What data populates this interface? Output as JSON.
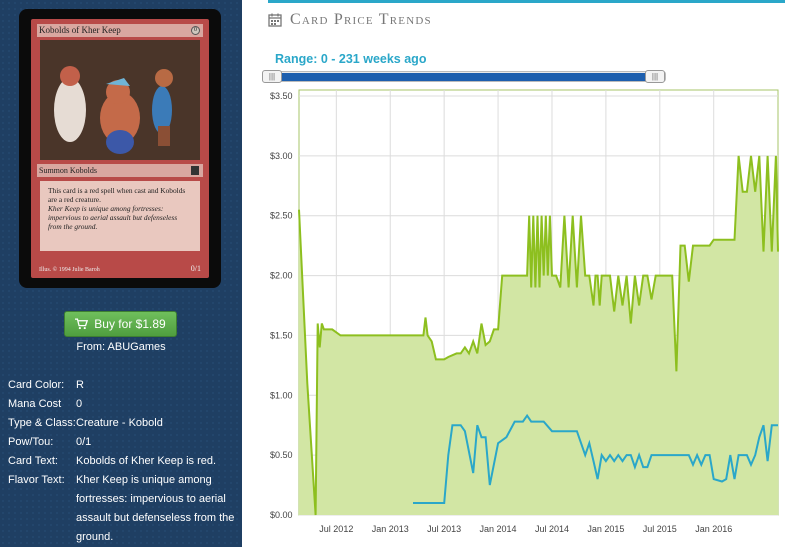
{
  "card": {
    "name": "Kobolds of Kher Keep",
    "mana_symbol": "0",
    "type_line": "Summon Kobolds",
    "rules_text": "This card is a red spell when cast and Kobolds are a red creature.",
    "flavor_text": "Kher Keep is unique among fortresses: impervious to aerial assault but defenseless from the ground.",
    "artist_line": "Illus. © 1994 Julie Baroh",
    "pt": "0/1"
  },
  "buy_button": {
    "label": "Buy for $1.89",
    "icon": "shopping-cart-icon"
  },
  "from_text": "From: ABUGames",
  "info": [
    {
      "label": "Card Color:",
      "value": "R"
    },
    {
      "label": "Mana Cost",
      "value": "0"
    },
    {
      "label": "Type & Class:",
      "value": "Creature - Kobold"
    },
    {
      "label": "Pow/Tou:",
      "value": "0/1"
    },
    {
      "label": "Card Text:",
      "value": "Kobolds of Kher Keep is red."
    },
    {
      "label": "Flavor Text:",
      "value": "Kher Keep is unique among fortresses: impervious to aerial assault but defenseless from the ground."
    }
  ],
  "section_title": "Card Price Trends",
  "section_icon": "calendar-icon",
  "range_text": "Range: 0 - 231 weeks ago",
  "colors": {
    "accent": "#2aa7c9",
    "series_green": "#8dbf1f",
    "area_green": "#d2e6a4",
    "series_blue": "#2aa7c9",
    "button_green": "#5cae4a"
  },
  "chart_data": {
    "type": "line",
    "ylim": [
      0,
      3.5
    ],
    "yticks": [
      "$3.50",
      "$3.00",
      "$2.50",
      "$2.00",
      "$1.50",
      "$1.00",
      "$0.50",
      "$0.00"
    ],
    "ytick_values": [
      3.5,
      3.0,
      2.5,
      2.0,
      1.5,
      1.0,
      0.5,
      0.0
    ],
    "xlim": [
      0,
      231
    ],
    "xticks": [
      "Jul 2012",
      "Jan 2013",
      "Jul 2013",
      "Jan 2014",
      "Jul 2014",
      "Jan 2015",
      "Jul 2015",
      "Jan 2016"
    ],
    "xtick_weeks": [
      18,
      44,
      70,
      96,
      122,
      148,
      174,
      200
    ],
    "grid": true,
    "series": [
      {
        "x": [
          0,
          4,
          8,
          9,
          10,
          11,
          12,
          14,
          16,
          20,
          30,
          40,
          55,
          60,
          61,
          62,
          64,
          66,
          70,
          72,
          76,
          78,
          80,
          82,
          84,
          86,
          88,
          90,
          92,
          94,
          96,
          98,
          100,
          104,
          108,
          110,
          111,
          112,
          113,
          114,
          115,
          116,
          117,
          118,
          119,
          120,
          121,
          122,
          124,
          126,
          128,
          130,
          132,
          134,
          136,
          138,
          140,
          142,
          143,
          144,
          145,
          146,
          148,
          150,
          152,
          154,
          156,
          158,
          160,
          162,
          164,
          166,
          168,
          170,
          172,
          174,
          176,
          178,
          180,
          182,
          184,
          186,
          188,
          190,
          192,
          194,
          196,
          198,
          200,
          204,
          208,
          210,
          212,
          214,
          216,
          218,
          220,
          222,
          224,
          226,
          228,
          230,
          231
        ],
        "y": [
          2.55,
          1.1,
          0.0,
          1.6,
          1.4,
          1.6,
          1.55,
          1.55,
          1.55,
          1.5,
          1.5,
          1.5,
          1.5,
          1.5,
          1.65,
          1.5,
          1.45,
          1.3,
          1.3,
          1.32,
          1.35,
          1.35,
          1.4,
          1.35,
          1.45,
          1.35,
          1.6,
          1.42,
          1.45,
          1.55,
          1.55,
          2.0,
          2.0,
          2.0,
          2.0,
          2.0,
          2.5,
          1.9,
          2.5,
          1.9,
          2.5,
          1.9,
          2.5,
          2.0,
          2.5,
          2.0,
          2.5,
          2.0,
          2.0,
          1.9,
          2.5,
          1.9,
          2.5,
          1.9,
          2.5,
          2.0,
          2.0,
          1.75,
          2.0,
          2.0,
          1.75,
          2.0,
          2.0,
          2.0,
          1.7,
          2.0,
          1.75,
          2.0,
          1.6,
          2.0,
          1.75,
          2.0,
          2.0,
          1.8,
          2.0,
          2.0,
          2.0,
          2.0,
          2.0,
          1.2,
          2.25,
          2.25,
          1.95,
          2.25,
          2.25,
          2.25,
          2.25,
          2.25,
          2.3,
          2.3,
          2.3,
          2.3,
          3.0,
          2.7,
          2.7,
          3.0,
          2.7,
          3.0,
          2.2,
          3.0,
          2.2,
          3.0,
          2.2
        ]
      },
      {
        "x": [
          55,
          60,
          65,
          70,
          72,
          74,
          76,
          78,
          80,
          84,
          86,
          88,
          90,
          92,
          96,
          100,
          104,
          108,
          110,
          112,
          118,
          122,
          126,
          130,
          134,
          138,
          140,
          142,
          144,
          146,
          148,
          150,
          152,
          154,
          156,
          158,
          160,
          162,
          164,
          166,
          168,
          170,
          172,
          174,
          176,
          180,
          184,
          188,
          190,
          192,
          194,
          196,
          198,
          200,
          204,
          206,
          208,
          210,
          212,
          214,
          216,
          218,
          220,
          222,
          224,
          226,
          228,
          230,
          231
        ],
        "y": [
          0.1,
          0.1,
          0.1,
          0.1,
          0.5,
          0.75,
          0.75,
          0.75,
          0.7,
          0.35,
          0.75,
          0.65,
          0.65,
          0.25,
          0.6,
          0.65,
          0.78,
          0.78,
          0.83,
          0.78,
          0.78,
          0.7,
          0.7,
          0.7,
          0.7,
          0.5,
          0.6,
          0.45,
          0.3,
          0.5,
          0.45,
          0.5,
          0.45,
          0.5,
          0.45,
          0.5,
          0.5,
          0.4,
          0.5,
          0.4,
          0.4,
          0.5,
          0.5,
          0.5,
          0.5,
          0.5,
          0.5,
          0.5,
          0.42,
          0.5,
          0.42,
          0.5,
          0.5,
          0.3,
          0.28,
          0.3,
          0.5,
          0.3,
          0.5,
          0.5,
          0.5,
          0.42,
          0.5,
          0.65,
          0.75,
          0.45,
          0.75,
          0.75,
          0.75
        ]
      }
    ]
  }
}
